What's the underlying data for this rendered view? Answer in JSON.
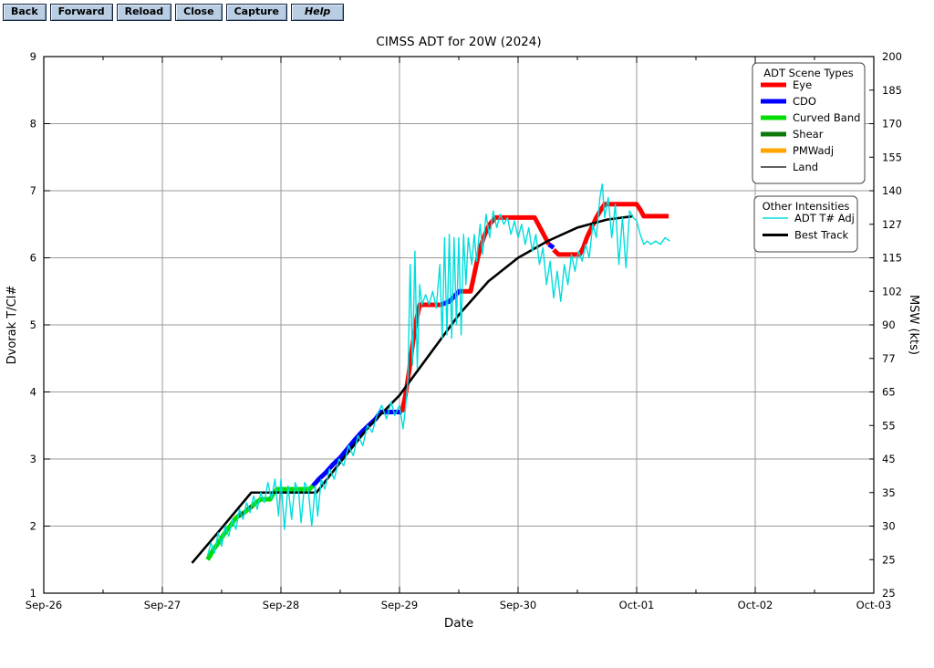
{
  "toolbar": {
    "buttons": [
      {
        "label": "Back"
      },
      {
        "label": "Forward"
      },
      {
        "label": "Reload"
      },
      {
        "label": "Close"
      },
      {
        "label": "Capture"
      },
      {
        "label": "Help"
      }
    ]
  },
  "chart_data": {
    "type": "line",
    "title": "CIMSS ADT for 20W (2024)",
    "xlabel": "Date",
    "ylabel_left": "Dvorak T/CI#",
    "ylabel_right": "MSW (kts)",
    "x_axis": {
      "tick_labels": [
        "Sep-26",
        "Sep-27",
        "Sep-28",
        "Sep-29",
        "Sep-30",
        "Oct-01",
        "Oct-02",
        "Oct-03"
      ],
      "range_days": [
        0,
        7
      ],
      "minor_tick_step": 0.5
    },
    "y_axis_left": {
      "range": [
        1,
        9
      ],
      "ticks": [
        1,
        2,
        3,
        4,
        5,
        6,
        7,
        8,
        9
      ]
    },
    "y_axis_right": {
      "ticks": [
        {
          "t": 1.0,
          "label": "25"
        },
        {
          "t": 1.5,
          "label": "25"
        },
        {
          "t": 2.0,
          "label": "30"
        },
        {
          "t": 2.5,
          "label": "35"
        },
        {
          "t": 3.0,
          "label": "45"
        },
        {
          "t": 3.5,
          "label": "55"
        },
        {
          "t": 4.0,
          "label": "65"
        },
        {
          "t": 4.5,
          "label": "77"
        },
        {
          "t": 5.0,
          "label": "90"
        },
        {
          "t": 5.5,
          "label": "102"
        },
        {
          "t": 6.0,
          "label": "115"
        },
        {
          "t": 6.5,
          "label": "127"
        },
        {
          "t": 7.0,
          "label": "140"
        },
        {
          "t": 7.5,
          "label": "155"
        },
        {
          "t": 8.0,
          "label": "170"
        },
        {
          "t": 8.5,
          "label": "185"
        },
        {
          "t": 9.0,
          "label": "200"
        }
      ]
    },
    "grid": {
      "color": "#9a9a9a",
      "x_step": 1,
      "y_step": 1
    },
    "legend_scene": {
      "title": "ADT Scene Types",
      "entries": [
        {
          "label": "Eye",
          "color": "#ff0000",
          "width": 5
        },
        {
          "label": "CDO",
          "color": "#0000ff",
          "width": 5
        },
        {
          "label": "Curved Band",
          "color": "#00dd00",
          "width": 5
        },
        {
          "label": "Shear",
          "color": "#0b7a0b",
          "width": 5
        },
        {
          "label": "PMWadj",
          "color": "#ffa500",
          "width": 5
        },
        {
          "label": "Land",
          "color": "#000000",
          "width": 1.2
        }
      ]
    },
    "legend_other": {
      "title": "Other Intensities",
      "entries": [
        {
          "label": "ADT T# Adj",
          "color": "#00dddd",
          "width": 1.5
        },
        {
          "label": "Best Track",
          "color": "#000000",
          "width": 3
        }
      ]
    },
    "series": {
      "scene_segments": [
        {
          "scene": "Curved Band",
          "color": "#00dd00",
          "points": [
            [
              1.38,
              1.5
            ],
            [
              1.4,
              1.55
            ],
            [
              1.43,
              1.65
            ],
            [
              1.46,
              1.72
            ],
            [
              1.49,
              1.8
            ],
            [
              1.52,
              1.88
            ],
            [
              1.55,
              1.95
            ],
            [
              1.58,
              2.02
            ],
            [
              1.61,
              2.1
            ],
            [
              1.64,
              2.15
            ]
          ]
        },
        {
          "scene": "Shear",
          "color": "#0b7a0b",
          "points": [
            [
              1.64,
              2.15
            ],
            [
              1.69,
              2.2
            ]
          ]
        },
        {
          "scene": "Curved Band",
          "color": "#00dd00",
          "points": [
            [
              1.69,
              2.2
            ],
            [
              1.72,
              2.25
            ]
          ]
        },
        {
          "scene": "Shear",
          "color": "#0b7a0b",
          "points": [
            [
              1.72,
              2.25
            ],
            [
              1.76,
              2.3
            ]
          ]
        },
        {
          "scene": "Curved Band",
          "color": "#00dd00",
          "points": [
            [
              1.76,
              2.3
            ],
            [
              1.79,
              2.35
            ],
            [
              1.83,
              2.4
            ],
            [
              1.91,
              2.4
            ],
            [
              1.94,
              2.5
            ],
            [
              1.97,
              2.55
            ],
            [
              2.24,
              2.55
            ],
            [
              2.27,
              2.6
            ]
          ]
        },
        {
          "scene": "CDO",
          "color": "#0000ff",
          "points": [
            [
              2.27,
              2.6
            ],
            [
              2.32,
              2.7
            ],
            [
              2.38,
              2.8
            ],
            [
              2.44,
              2.92
            ],
            [
              2.5,
              3.02
            ],
            [
              2.56,
              3.15
            ],
            [
              2.62,
              3.28
            ],
            [
              2.68,
              3.4
            ],
            [
              2.74,
              3.5
            ],
            [
              2.8,
              3.6
            ],
            [
              2.84,
              3.7
            ],
            [
              3.02,
              3.7
            ]
          ]
        },
        {
          "scene": "Eye",
          "color": "#ff0000",
          "points": [
            [
              3.02,
              3.7
            ],
            [
              3.05,
              3.95
            ],
            [
              3.08,
              4.3
            ],
            [
              3.11,
              4.7
            ],
            [
              3.14,
              5.05
            ],
            [
              3.17,
              5.3
            ],
            [
              3.35,
              5.3
            ]
          ]
        },
        {
          "scene": "CDO",
          "color": "#0000ff",
          "points": [
            [
              3.35,
              5.3
            ],
            [
              3.42,
              5.35
            ],
            [
              3.46,
              5.42
            ],
            [
              3.5,
              5.5
            ],
            [
              3.53,
              5.5
            ]
          ]
        },
        {
          "scene": "Eye",
          "color": "#ff0000",
          "points": [
            [
              3.53,
              5.5
            ],
            [
              3.6,
              5.5
            ],
            [
              3.63,
              5.75
            ],
            [
              3.66,
              6.0
            ],
            [
              3.69,
              6.2
            ],
            [
              3.72,
              6.35
            ],
            [
              3.76,
              6.5
            ],
            [
              3.81,
              6.6
            ],
            [
              4.14,
              6.6
            ],
            [
              4.17,
              6.5
            ],
            [
              4.2,
              6.4
            ],
            [
              4.23,
              6.3
            ],
            [
              4.26,
              6.2
            ]
          ]
        },
        {
          "scene": "CDO",
          "color": "#0000ff",
          "points": [
            [
              4.26,
              6.2
            ],
            [
              4.3,
              6.15
            ]
          ]
        },
        {
          "scene": "Eye",
          "color": "#ff0000",
          "points": [
            [
              4.3,
              6.12
            ],
            [
              4.34,
              6.05
            ],
            [
              4.52,
              6.05
            ],
            [
              4.55,
              6.15
            ],
            [
              4.58,
              6.3
            ],
            [
              4.62,
              6.45
            ],
            [
              4.66,
              6.6
            ],
            [
              4.7,
              6.72
            ],
            [
              4.73,
              6.8
            ],
            [
              5.0,
              6.8
            ],
            [
              5.03,
              6.72
            ],
            [
              5.06,
              6.62
            ],
            [
              5.27,
              6.62
            ]
          ]
        }
      ],
      "best_track": {
        "name": "Best Track",
        "color": "#000000",
        "points": [
          [
            1.25,
            1.45
          ],
          [
            1.5,
            1.97
          ],
          [
            1.75,
            2.5
          ],
          [
            2.3,
            2.5
          ],
          [
            2.5,
            2.95
          ],
          [
            2.75,
            3.5
          ],
          [
            3.0,
            3.95
          ],
          [
            3.25,
            4.55
          ],
          [
            3.5,
            5.15
          ],
          [
            3.75,
            5.65
          ],
          [
            4.0,
            6.0
          ],
          [
            4.25,
            6.25
          ],
          [
            4.5,
            6.45
          ],
          [
            4.75,
            6.57
          ],
          [
            4.97,
            6.62
          ]
        ]
      },
      "adt_adj": {
        "name": "ADT T# Adj",
        "color": "#00dddd",
        "points": [
          [
            1.38,
            1.55
          ],
          [
            1.41,
            1.75
          ],
          [
            1.44,
            1.6
          ],
          [
            1.47,
            1.9
          ],
          [
            1.5,
            1.7
          ],
          [
            1.53,
            2.0
          ],
          [
            1.56,
            1.85
          ],
          [
            1.59,
            2.1
          ],
          [
            1.62,
            1.95
          ],
          [
            1.65,
            2.25
          ],
          [
            1.68,
            2.1
          ],
          [
            1.71,
            2.35
          ],
          [
            1.74,
            2.2
          ],
          [
            1.77,
            2.45
          ],
          [
            1.8,
            2.25
          ],
          [
            1.83,
            2.5
          ],
          [
            1.86,
            2.35
          ],
          [
            1.89,
            2.65
          ],
          [
            1.92,
            2.4
          ],
          [
            1.95,
            2.7
          ],
          [
            1.98,
            2.15
          ],
          [
            2.0,
            2.7
          ],
          [
            2.03,
            1.95
          ],
          [
            2.06,
            2.6
          ],
          [
            2.09,
            2.1
          ],
          [
            2.12,
            2.65
          ],
          [
            2.15,
            2.5
          ],
          [
            2.17,
            2.05
          ],
          [
            2.2,
            2.65
          ],
          [
            2.23,
            2.55
          ],
          [
            2.26,
            2.0
          ],
          [
            2.29,
            2.6
          ],
          [
            2.31,
            2.15
          ],
          [
            2.34,
            2.7
          ],
          [
            2.37,
            2.55
          ],
          [
            2.41,
            2.85
          ],
          [
            2.45,
            2.7
          ],
          [
            2.49,
            3.0
          ],
          [
            2.53,
            2.9
          ],
          [
            2.57,
            3.2
          ],
          [
            2.61,
            3.05
          ],
          [
            2.65,
            3.35
          ],
          [
            2.69,
            3.2
          ],
          [
            2.73,
            3.5
          ],
          [
            2.77,
            3.4
          ],
          [
            2.81,
            3.65
          ],
          [
            2.85,
            3.8
          ],
          [
            2.89,
            3.6
          ],
          [
            2.93,
            3.85
          ],
          [
            2.96,
            3.65
          ],
          [
            3.0,
            3.8
          ],
          [
            3.03,
            3.45
          ],
          [
            3.05,
            3.75
          ],
          [
            3.07,
            4.15
          ],
          [
            3.09,
            5.9
          ],
          [
            3.11,
            4.4
          ],
          [
            3.13,
            6.1
          ],
          [
            3.15,
            4.35
          ],
          [
            3.17,
            5.6
          ],
          [
            3.19,
            5.3
          ],
          [
            3.22,
            5.45
          ],
          [
            3.25,
            5.3
          ],
          [
            3.28,
            5.5
          ],
          [
            3.31,
            5.25
          ],
          [
            3.34,
            5.9
          ],
          [
            3.36,
            4.8
          ],
          [
            3.38,
            6.3
          ],
          [
            3.4,
            4.85
          ],
          [
            3.42,
            6.35
          ],
          [
            3.44,
            4.8
          ],
          [
            3.46,
            6.3
          ],
          [
            3.48,
            5.0
          ],
          [
            3.5,
            6.3
          ],
          [
            3.52,
            4.85
          ],
          [
            3.54,
            6.35
          ],
          [
            3.56,
            5.6
          ],
          [
            3.58,
            6.3
          ],
          [
            3.61,
            5.9
          ],
          [
            3.63,
            6.35
          ],
          [
            3.65,
            5.95
          ],
          [
            3.68,
            6.5
          ],
          [
            3.7,
            6.05
          ],
          [
            3.73,
            6.65
          ],
          [
            3.76,
            6.3
          ],
          [
            3.79,
            6.7
          ],
          [
            3.82,
            6.45
          ],
          [
            3.85,
            6.65
          ],
          [
            3.88,
            6.5
          ],
          [
            3.91,
            6.6
          ],
          [
            3.94,
            6.35
          ],
          [
            3.97,
            6.55
          ],
          [
            4.0,
            6.3
          ],
          [
            4.03,
            6.5
          ],
          [
            4.06,
            6.2
          ],
          [
            4.09,
            6.45
          ],
          [
            4.12,
            6.1
          ],
          [
            4.15,
            6.35
          ],
          [
            4.18,
            5.9
          ],
          [
            4.21,
            6.15
          ],
          [
            4.24,
            5.6
          ],
          [
            4.27,
            5.95
          ],
          [
            4.3,
            5.4
          ],
          [
            4.33,
            5.8
          ],
          [
            4.36,
            5.35
          ],
          [
            4.39,
            5.9
          ],
          [
            4.42,
            5.6
          ],
          [
            4.45,
            6.05
          ],
          [
            4.48,
            5.8
          ],
          [
            4.51,
            6.1
          ],
          [
            4.54,
            5.95
          ],
          [
            4.57,
            6.2
          ],
          [
            4.6,
            6.0
          ],
          [
            4.63,
            6.5
          ],
          [
            4.66,
            6.3
          ],
          [
            4.69,
            6.9
          ],
          [
            4.71,
            7.1
          ],
          [
            4.73,
            6.6
          ],
          [
            4.76,
            6.9
          ],
          [
            4.79,
            6.3
          ],
          [
            4.82,
            6.8
          ],
          [
            4.85,
            5.9
          ],
          [
            4.88,
            6.6
          ],
          [
            4.91,
            5.85
          ],
          [
            4.94,
            6.7
          ],
          [
            4.97,
            6.6
          ],
          [
            5.0,
            6.55
          ],
          [
            5.03,
            6.35
          ],
          [
            5.06,
            6.2
          ],
          [
            5.09,
            6.25
          ],
          [
            5.12,
            6.2
          ],
          [
            5.16,
            6.25
          ],
          [
            5.2,
            6.2
          ],
          [
            5.24,
            6.3
          ],
          [
            5.28,
            6.25
          ]
        ]
      }
    }
  }
}
